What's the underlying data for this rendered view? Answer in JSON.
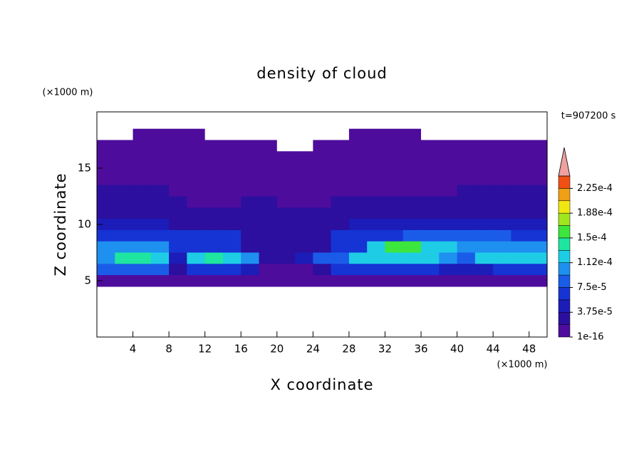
{
  "chart_data": {
    "type": "contour",
    "title": "density of cloud",
    "x_label": "X coordinate",
    "y_label": "Z coordinate",
    "x_unit": "(×1000 m)",
    "y_unit": "(×1000 m)",
    "time_label": "t=907200 s",
    "xlim": [
      0,
      50
    ],
    "xticks": [
      4,
      8,
      12,
      16,
      20,
      24,
      28,
      32,
      36,
      40,
      44,
      48
    ],
    "ylim": [
      0,
      20
    ],
    "yticks": [
      5,
      10,
      15
    ],
    "x": [
      1,
      3,
      5,
      7,
      9,
      11,
      13,
      15,
      17,
      19,
      21,
      23,
      25,
      27,
      29,
      31,
      33,
      35,
      37,
      39,
      41,
      43,
      45,
      47,
      49
    ],
    "y": [
      18,
      17,
      16,
      15,
      14,
      13,
      12,
      11,
      10,
      9,
      8,
      7,
      6,
      5
    ],
    "z": [
      [
        0,
        0,
        1e-06,
        1e-06,
        1e-06,
        1e-06,
        0,
        0,
        0,
        0,
        0,
        0,
        0,
        0,
        1e-06,
        1e-06,
        1e-06,
        1e-06,
        0,
        0,
        0,
        0,
        0,
        0,
        0
      ],
      [
        1e-06,
        1e-06,
        1e-06,
        1e-06,
        1e-06,
        1e-06,
        1e-06,
        1e-06,
        1e-06,
        1e-06,
        0,
        0,
        1e-06,
        1e-06,
        1e-06,
        1e-06,
        1e-06,
        1e-06,
        1e-06,
        1e-06,
        1e-06,
        1e-06,
        1e-06,
        1e-06,
        1e-06
      ],
      [
        5e-06,
        5e-06,
        5e-06,
        5e-06,
        5e-06,
        5e-06,
        5e-06,
        5e-06,
        5e-06,
        5e-06,
        5e-06,
        5e-06,
        5e-06,
        5e-06,
        5e-06,
        5e-06,
        5e-06,
        5e-06,
        5e-06,
        5e-06,
        5e-06,
        5e-06,
        5e-06,
        5e-06,
        5e-06
      ],
      [
        8e-06,
        8e-06,
        8e-06,
        8e-06,
        8e-06,
        8e-06,
        8e-06,
        8e-06,
        8e-06,
        8e-06,
        8e-06,
        8e-06,
        8e-06,
        8e-06,
        8e-06,
        8e-06,
        8e-06,
        8e-06,
        8e-06,
        8e-06,
        8e-06,
        8e-06,
        8e-06,
        8e-06,
        8e-06
      ],
      [
        1e-05,
        1e-05,
        1e-05,
        1e-05,
        1e-05,
        1e-05,
        1e-05,
        1e-05,
        1e-05,
        1e-05,
        1e-05,
        1e-05,
        1e-05,
        1e-05,
        1e-05,
        1e-05,
        1e-05,
        1e-05,
        1e-05,
        1e-05,
        1e-05,
        1e-05,
        1e-05,
        1e-05,
        1e-05
      ],
      [
        2e-05,
        2e-05,
        2e-05,
        2e-05,
        1.2e-05,
        1e-05,
        1e-05,
        1e-05,
        1e-05,
        1e-05,
        1e-05,
        1e-05,
        1e-05,
        1e-05,
        1.2e-05,
        1.5e-05,
        1.5e-05,
        1.5e-05,
        1.5e-05,
        1.5e-05,
        2e-05,
        2e-05,
        2e-05,
        2e-05,
        2e-05
      ],
      [
        2e-05,
        2e-05,
        2e-05,
        2e-05,
        2e-05,
        1.5e-05,
        1.5e-05,
        1.5e-05,
        2e-05,
        2e-05,
        1.5e-05,
        1.5e-05,
        1.5e-05,
        2e-05,
        2e-05,
        2e-05,
        2e-05,
        2e-05,
        2e-05,
        2e-05,
        2e-05,
        2e-05,
        2e-05,
        2e-05,
        2e-05
      ],
      [
        3e-05,
        3e-05,
        3e-05,
        3e-05,
        2.5e-05,
        2.5e-05,
        2.5e-05,
        2.5e-05,
        2.5e-05,
        2.5e-05,
        2.5e-05,
        2.5e-05,
        2.5e-05,
        2.5e-05,
        2.5e-05,
        2.5e-05,
        2.5e-05,
        2.5e-05,
        2.5e-05,
        2.5e-05,
        2.5e-05,
        2.5e-05,
        2.5e-05,
        2.5e-05,
        2.5e-05
      ],
      [
        5e-05,
        5e-05,
        5e-05,
        5e-05,
        3e-05,
        3e-05,
        3e-05,
        3e-05,
        2.5e-05,
        2.5e-05,
        2.5e-05,
        2.5e-05,
        2.5e-05,
        2.5e-05,
        4.5e-05,
        4.5e-05,
        4.5e-05,
        4.5e-05,
        4.5e-05,
        4.5e-05,
        4.5e-05,
        4.5e-05,
        4.5e-05,
        4.5e-05,
        4.5e-05
      ],
      [
        6e-05,
        6e-05,
        6e-05,
        6e-05,
        6e-05,
        6e-05,
        6e-05,
        6e-05,
        3e-05,
        3e-05,
        3e-05,
        3e-05,
        3e-05,
        7e-05,
        7e-05,
        7e-05,
        7e-05,
        9e-05,
        9e-05,
        9e-05,
        9e-05,
        9e-05,
        9e-05,
        7e-05,
        7e-05
      ],
      [
        0.0001,
        0.0001,
        0.0001,
        0.0001,
        6e-05,
        6e-05,
        6e-05,
        6e-05,
        3e-05,
        3e-05,
        3e-05,
        3e-05,
        3e-05,
        6e-05,
        6e-05,
        0.00012,
        0.000155,
        0.000155,
        0.00012,
        0.00012,
        0.000105,
        0.000105,
        0.000105,
        0.000105,
        0.000105
      ],
      [
        0.00011,
        0.000145,
        0.000145,
        0.00012,
        4e-05,
        0.00012,
        0.00014,
        0.00012,
        0.0001,
        2e-05,
        2e-05,
        4e-05,
        8e-05,
        8e-05,
        0.00013,
        0.00013,
        0.00013,
        0.00013,
        0.00013,
        0.0001,
        8e-05,
        0.000115,
        0.000115,
        0.000115,
        0.000115
      ],
      [
        8e-05,
        8e-05,
        8e-05,
        8e-05,
        3e-05,
        7e-05,
        7e-05,
        7e-05,
        4e-05,
        1.5e-05,
        1.5e-05,
        1.5e-05,
        3e-05,
        6e-05,
        6e-05,
        6e-05,
        6e-05,
        6e-05,
        6e-05,
        4e-05,
        4e-05,
        4e-05,
        6e-05,
        6e-05,
        6e-05
      ],
      [
        1e-05,
        1e-05,
        1e-05,
        1e-05,
        1e-05,
        1e-05,
        1e-05,
        1e-05,
        1e-05,
        1e-05,
        1e-05,
        1e-05,
        1e-05,
        1e-05,
        1e-05,
        1e-05,
        1e-05,
        1e-05,
        1e-05,
        1e-05,
        1e-05,
        1e-05,
        1e-05,
        1e-05,
        1e-05
      ]
    ],
    "levels": [
      1e-16,
      1.875e-05,
      3.75e-05,
      5.625e-05,
      7.5e-05,
      9.375e-05,
      0.0001125,
      0.00013125,
      0.00015,
      0.00016875,
      0.0001875,
      0.00020625,
      0.000225,
      0.00024375
    ],
    "colors": [
      "#4e0c9c",
      "#2c0f9e",
      "#1c1cb8",
      "#1634d4",
      "#1a5ce8",
      "#1e90f0",
      "#1ecce6",
      "#1ee6a0",
      "#3ce63c",
      "#a0e61e",
      "#f0e614",
      "#f0a014",
      "#f05014"
    ],
    "extend_color": "#f0a0a0",
    "colorbar_ticks": [
      1e-16,
      {
        "value": 3.75e-05,
        "label": "3.75e-5"
      },
      {
        "value": 7.5e-05,
        "label": "7.5e-5"
      },
      {
        "value": 0.0001125,
        "label": "1.12e-4"
      },
      {
        "value": 0.00015,
        "label": "1.5e-4"
      },
      {
        "value": 0.0001875,
        "label": "1.88e-4"
      },
      {
        "value": 0.000225,
        "label": "2.25e-4"
      }
    ]
  }
}
